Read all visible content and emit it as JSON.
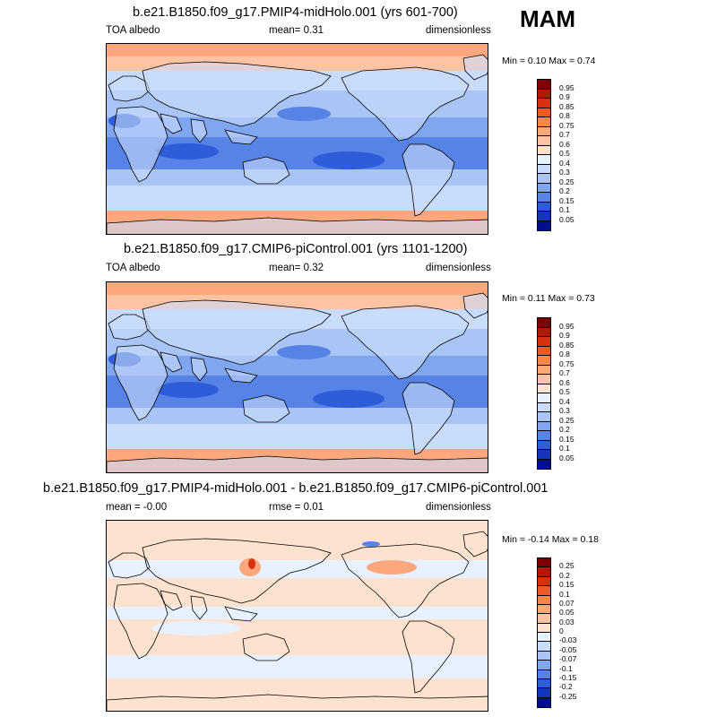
{
  "season": "MAM",
  "panels": [
    {
      "title": "b.e21.B1850.f09_g17.PMIP4-midHolo.001 (yrs 601-700)",
      "left_label": "TOA albedo",
      "center_label": "mean=   0.31",
      "right_label": "dimensionless",
      "minmax": "Min =   0.10 Max =   0.74",
      "type": "field"
    },
    {
      "title": "b.e21.B1850.f09_g17.CMIP6-piControl.001 (yrs 1101-1200)",
      "left_label": "TOA albedo",
      "center_label": "mean=   0.32",
      "right_label": "dimensionless",
      "minmax": "Min =   0.11 Max =   0.73",
      "type": "field"
    },
    {
      "title": "b.e21.B1850.f09_g17.PMIP4-midHolo.001 - b.e21.B1850.f09_g17.CMIP6-piControl.001",
      "left_label": "mean =  -0.00",
      "center_label": "rmse =   0.01",
      "right_label": "dimensionless",
      "minmax": "Min =  -0.14 Max =   0.18",
      "type": "diff"
    }
  ],
  "colorbars": {
    "field": {
      "labels": [
        "0.95",
        "0.9",
        "0.85",
        "0.8",
        "0.75",
        "0.7",
        "0.6",
        "0.5",
        "0.4",
        "0.3",
        "0.25",
        "0.2",
        "0.15",
        "0.1",
        "0.05"
      ],
      "colors": [
        "#7f0000",
        "#b21800",
        "#d83010",
        "#f05828",
        "#f98650",
        "#fca77c",
        "#fdc4a4",
        "#fde2cf",
        "#e8f1ff",
        "#c9dcfb",
        "#a8c5f6",
        "#7fa6ef",
        "#5782e6",
        "#2f5cd8",
        "#1535c0",
        "#00108c"
      ]
    },
    "diff": {
      "labels": [
        "0.25",
        "0.2",
        "0.15",
        "0.1",
        "0.07",
        "0.05",
        "0.03",
        "0",
        "-0.03",
        "-0.05",
        "-0.07",
        "-0.1",
        "-0.15",
        "-0.2",
        "-0.25"
      ],
      "colors": [
        "#7f0000",
        "#b21800",
        "#d83010",
        "#f05828",
        "#f98650",
        "#fca77c",
        "#fdc4a4",
        "#fde2cf",
        "#e8f1ff",
        "#c9dcfb",
        "#a8c5f6",
        "#7fa6ef",
        "#5782e6",
        "#2f5cd8",
        "#1535c0",
        "#00108c"
      ]
    }
  },
  "map_colors": {
    "polar": "#fca77c",
    "subpolar": "#fdc4a4",
    "ocean_light": "#c9dcfb",
    "ocean_mid": "#a8c5f6",
    "tropics": "#7fa6ef",
    "tropics_dark": "#5782e6",
    "stratus": "#2f5cd8",
    "diff_bg": "#fde2cf",
    "diff_neg": "#e8f1ff",
    "diff_pos": "#fca77c",
    "diff_hot": "#d83010",
    "diff_cold": "#5782e6",
    "coast": "#000000"
  }
}
